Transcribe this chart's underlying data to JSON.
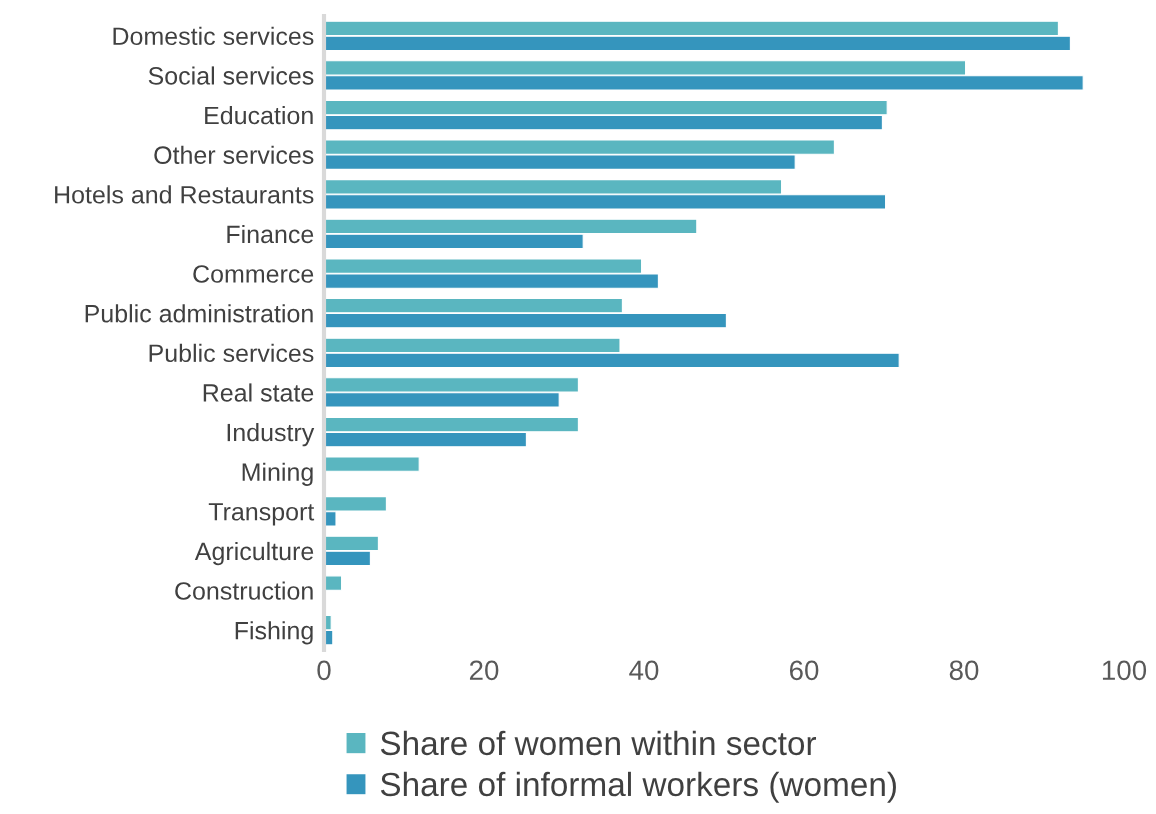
{
  "chart_data": {
    "type": "bar",
    "orientation": "horizontal",
    "categories": [
      "Domestic services",
      "Social services",
      "Education",
      "Other services",
      "Hotels and Restaurants",
      "Finance",
      "Commerce",
      "Public administration",
      "Public services",
      "Real state",
      "Industry",
      "Mining",
      "Transport",
      "Agriculture",
      "Construction",
      "Fishing"
    ],
    "series": [
      {
        "name": "Share of women within sector",
        "color": "#5ab6c0",
        "values": [
          91.8,
          80.2,
          70.4,
          63.8,
          57.2,
          46.6,
          39.7,
          37.3,
          37.0,
          31.8,
          31.8,
          11.9,
          7.8,
          6.8,
          2.2,
          0.9
        ]
      },
      {
        "name": "Share of informal workers (women)",
        "color": "#3595bd",
        "values": [
          93.3,
          94.9,
          69.8,
          58.9,
          70.2,
          32.4,
          41.8,
          50.3,
          71.9,
          29.4,
          25.3,
          null,
          1.5,
          5.8,
          null,
          1.1
        ]
      }
    ],
    "xlim": [
      0,
      100
    ],
    "xticks": [
      0,
      20,
      40,
      60,
      80,
      100
    ],
    "grid": false,
    "legend": "bottom"
  }
}
